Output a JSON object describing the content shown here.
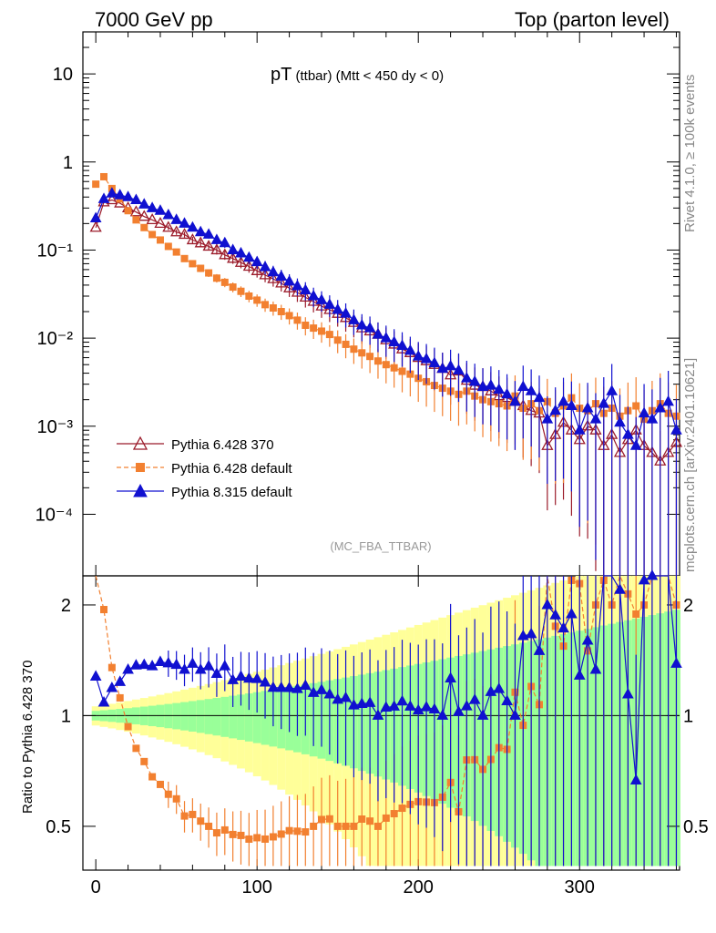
{
  "header": {
    "left": "7000 GeV pp",
    "right": "Top (parton level)"
  },
  "title": {
    "main": "pT",
    "sub": " (ttbar) (Mtt < 450 dy < 0)"
  },
  "side_labels": {
    "rivet": "Rivet 4.1.0, ≥ 100k events",
    "mcplots": "mcplots.cern.ch [arXiv:2401.10621]"
  },
  "watermark": "(MC_FBA_TTBAR)",
  "ratio_ylabel": "Ratio to Pythia 6.428 370",
  "legend": [
    {
      "label": "Pythia 6.428 370",
      "color": "#9b1b2a",
      "marker": "open-triangle"
    },
    {
      "label": "Pythia 6.428 default",
      "color": "#f28030",
      "marker": "square"
    },
    {
      "label": "Pythia 8.315 default",
      "color": "#1010d0",
      "marker": "triangle"
    }
  ],
  "chart_data": {
    "type": "line",
    "xlabel": "",
    "xlim": [
      -8,
      362
    ],
    "x_ticks": [
      0,
      100,
      200,
      300
    ],
    "main": {
      "yscale": "log",
      "ylim": [
        2e-05,
        30
      ],
      "y_ticks": [
        {
          "value": 10,
          "label": "10"
        },
        {
          "value": 1,
          "label": "1"
        },
        {
          "value": 0.1,
          "label": "10⁻¹"
        },
        {
          "value": 0.01,
          "label": "10⁻²"
        },
        {
          "value": 0.001,
          "label": "10⁻³"
        },
        {
          "value": 0.0001,
          "label": "10⁻⁴"
        }
      ]
    },
    "ratio": {
      "yscale": "log",
      "ylim": [
        0.38,
        2.4
      ],
      "y_ticks": [
        {
          "value": 2,
          "label": "2"
        },
        {
          "value": 1,
          "label": "1"
        },
        {
          "value": 0.5,
          "label": "0.5"
        }
      ]
    },
    "x": [
      0,
      5,
      10,
      15,
      20,
      25,
      30,
      35,
      40,
      45,
      50,
      55,
      60,
      65,
      70,
      75,
      80,
      85,
      90,
      95,
      100,
      105,
      110,
      115,
      120,
      125,
      130,
      135,
      140,
      145,
      150,
      155,
      160,
      165,
      170,
      175,
      180,
      185,
      190,
      195,
      200,
      205,
      210,
      215,
      220,
      225,
      230,
      235,
      240,
      245,
      250,
      255,
      260,
      265,
      270,
      275,
      280,
      285,
      290,
      295,
      300,
      305,
      310,
      315,
      320,
      325,
      330,
      335,
      340,
      345,
      350,
      355,
      360
    ],
    "series": [
      {
        "name": "Pythia 6.428 370",
        "values": [
          0.18,
          0.35,
          0.37,
          0.34,
          0.3,
          0.27,
          0.24,
          0.22,
          0.2,
          0.18,
          0.16,
          0.15,
          0.13,
          0.12,
          0.11,
          0.1,
          0.088,
          0.08,
          0.072,
          0.065,
          0.058,
          0.052,
          0.047,
          0.042,
          0.037,
          0.033,
          0.029,
          0.026,
          0.023,
          0.021,
          0.019,
          0.017,
          0.015,
          0.013,
          0.012,
          0.011,
          0.0095,
          0.0085,
          0.0075,
          0.0068,
          0.006,
          0.0055,
          0.005,
          0.0045,
          0.0038,
          0.0042,
          0.0033,
          0.0029,
          0.0028,
          0.0025,
          0.0022,
          0.0021,
          0.0019,
          0.0017,
          0.0015,
          0.0014,
          0.0006,
          0.0008,
          0.0011,
          0.0009,
          0.0007,
          0.001,
          0.0009,
          0.0006,
          0.0008,
          0.0005,
          0.0007,
          0.0009,
          0.0006,
          0.0005,
          0.0004,
          0.0005,
          0.00065
        ]
      },
      {
        "name": "Pythia 6.428 default",
        "values": [
          0.56,
          0.68,
          0.5,
          0.38,
          0.28,
          0.22,
          0.18,
          0.15,
          0.13,
          0.11,
          0.095,
          0.08,
          0.07,
          0.062,
          0.055,
          0.048,
          0.043,
          0.038,
          0.034,
          0.03,
          0.027,
          0.024,
          0.022,
          0.02,
          0.018,
          0.016,
          0.014,
          0.013,
          0.012,
          0.011,
          0.0095,
          0.0085,
          0.0075,
          0.0068,
          0.0062,
          0.0055,
          0.005,
          0.0046,
          0.0042,
          0.0039,
          0.0035,
          0.0032,
          0.0029,
          0.0027,
          0.0025,
          0.0023,
          0.0025,
          0.0022,
          0.002,
          0.0019,
          0.0018,
          0.0017,
          0.0022,
          0.0016,
          0.0018,
          0.0015,
          0.0019,
          0.0014,
          0.0017,
          0.0021,
          0.0016,
          0.0015,
          0.0018,
          0.0014,
          0.0016,
          0.0013,
          0.0015,
          0.0017,
          0.0012,
          0.0015,
          0.0018,
          0.0014,
          0.0013
        ]
      },
      {
        "name": "Pythia 8.315 default",
        "values": [
          0.23,
          0.38,
          0.44,
          0.42,
          0.4,
          0.37,
          0.33,
          0.3,
          0.28,
          0.25,
          0.22,
          0.2,
          0.18,
          0.16,
          0.15,
          0.13,
          0.12,
          0.1,
          0.092,
          0.082,
          0.073,
          0.064,
          0.056,
          0.05,
          0.044,
          0.039,
          0.035,
          0.03,
          0.027,
          0.024,
          0.021,
          0.019,
          0.016,
          0.014,
          0.013,
          0.011,
          0.01,
          0.009,
          0.0082,
          0.0072,
          0.0062,
          0.0058,
          0.0052,
          0.0045,
          0.0048,
          0.0043,
          0.0035,
          0.0032,
          0.0028,
          0.0029,
          0.0026,
          0.0023,
          0.0019,
          0.0028,
          0.0025,
          0.0021,
          0.0012,
          0.0015,
          0.0019,
          0.0017,
          0.0009,
          0.0016,
          0.0012,
          0.0018,
          0.0025,
          0.0011,
          0.0008,
          0.0006,
          0.0014,
          0.0012,
          0.0016,
          0.0019,
          0.0009
        ]
      }
    ]
  }
}
